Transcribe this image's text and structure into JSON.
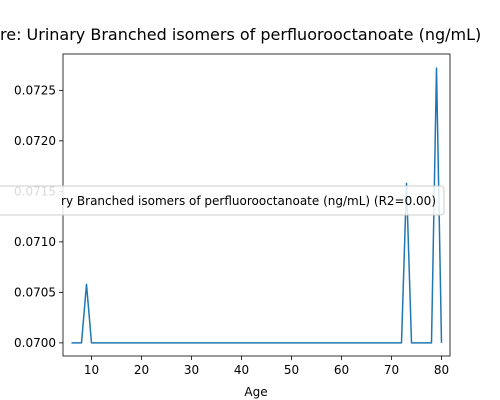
{
  "chart_data": {
    "type": "line",
    "title": "re: Urinary Branched isomers of perfluorooctanoate (ng/mL)",
    "xlabel": "Age",
    "ylabel": "",
    "xlim": [
      4.3,
      81.7
    ],
    "ylim": [
      0.06987,
      0.07286
    ],
    "xticks": [
      10,
      20,
      30,
      40,
      50,
      60,
      70,
      80
    ],
    "yticks": [
      0.07,
      0.0705,
      0.071,
      0.0715,
      0.072,
      0.0725
    ],
    "ytick_labels": [
      "0.0700",
      "0.0705",
      "0.0710",
      "0.0715",
      "0.0720",
      "0.0725"
    ],
    "grid": false,
    "legend": {
      "placement": "center-right",
      "entries": [
        "ry Branched isomers of perfluorooctanoate (ng/mL) (R2=0.00)"
      ]
    },
    "series": [
      {
        "color": "#1f77b4",
        "x": [
          6,
          8,
          9,
          10,
          72,
          73,
          74,
          77,
          78,
          79,
          80
        ],
        "y": [
          0.07,
          0.07,
          0.07058,
          0.07,
          0.07,
          0.07158,
          0.07,
          0.07,
          0.07,
          0.07272,
          0.07
        ]
      }
    ]
  }
}
